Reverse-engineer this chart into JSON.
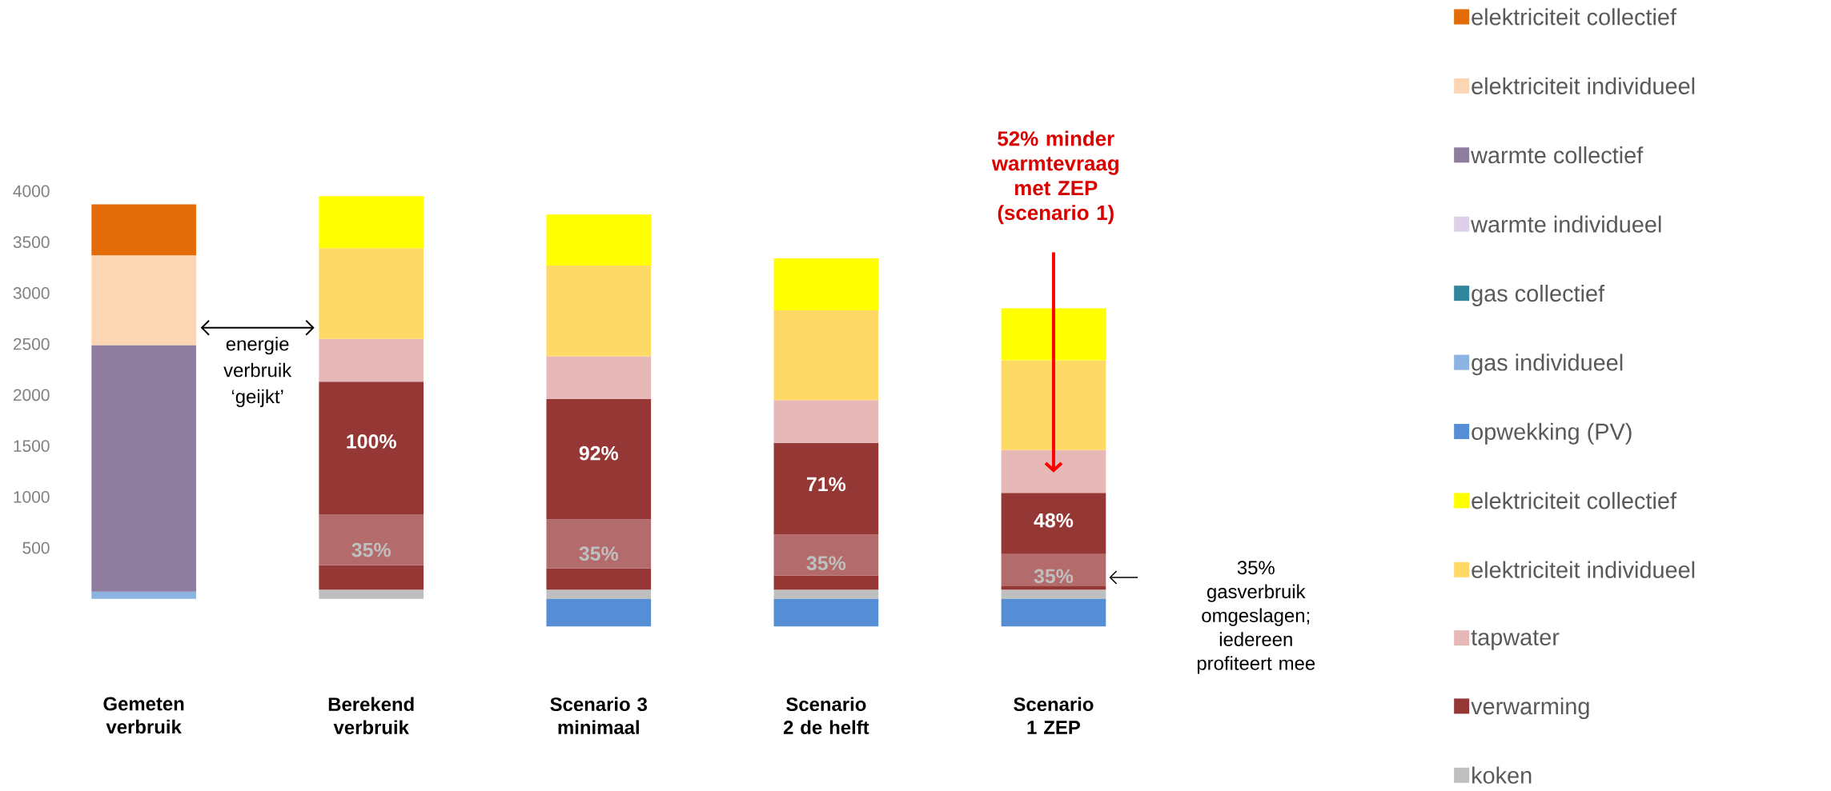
{
  "chart_data": {
    "type": "bar",
    "stacked": true,
    "legend": "right",
    "categories": [
      "Gemeten verbruik",
      "Berekend verbruik",
      "Scenario 3 minimaal",
      "Scenario 2 de helft",
      "Scenario 1 ZEP"
    ],
    "ylim": [
      -300,
      4000
    ],
    "yticks": [
      500,
      1000,
      1500,
      2000,
      2500,
      3000,
      3500,
      4000
    ],
    "series": [
      {
        "name": "koken",
        "color": "#bfbfbf",
        "values": [
          null,
          90,
          90,
          90,
          90
        ]
      },
      {
        "color": "#953735",
        "values": [
          null,
          240,
          210,
          140,
          40
        ]
      },
      {
        "color": "#b36b6b",
        "values": [
          null,
          500,
          480,
          400,
          310
        ]
      },
      {
        "name": "verwarming",
        "color": "#953735",
        "values": [
          null,
          1300,
          1180,
          900,
          600
        ]
      },
      {
        "name": "tapwater",
        "color": "#e6b8b7",
        "values": [
          null,
          420,
          420,
          420,
          420
        ]
      },
      {
        "name": "elektriciteit individueel",
        "color": "#ffd966",
        "values": [
          null,
          890,
          890,
          880,
          880
        ]
      },
      {
        "name": "elektriciteit collectief",
        "color": "#ffff00",
        "values": [
          null,
          510,
          500,
          510,
          510
        ]
      },
      {
        "name": "opwekking (PV)",
        "color": "#558ed5",
        "values": [
          null,
          null,
          -270,
          -270,
          -270
        ]
      },
      {
        "name": "gas individueel",
        "color": "#8db3e2",
        "values": [
          70,
          null,
          null,
          null,
          null
        ]
      },
      {
        "name": "gas collectief",
        "color": "#31859c",
        "values": [
          null,
          null,
          null,
          null,
          null
        ]
      },
      {
        "name": "warmte individueel",
        "color": "#ddd0e8",
        "values": [
          null,
          null,
          null,
          null,
          null
        ]
      },
      {
        "name": "warmte collectief",
        "color": "#8e7d9e",
        "values": [
          2420,
          null,
          null,
          null,
          null
        ]
      },
      {
        "name": "elektriciteit individueel",
        "color": "#fcd5b5",
        "values": [
          880,
          null,
          null,
          null,
          null
        ]
      },
      {
        "name": "elektriciteit collectief",
        "color": "#e36c09",
        "values": [
          500,
          null,
          null,
          null,
          null
        ]
      }
    ],
    "annotations": [
      "energie verbruik ‘geijkt’",
      "52% minder warmtevraag met ZEP (scenario 1)",
      "35% gasverbruik omgeslagen; iedereen profiteert mee",
      "100%",
      "35%",
      "92%",
      "35%",
      "71%",
      "35%",
      "48%",
      "35%"
    ]
  }
}
